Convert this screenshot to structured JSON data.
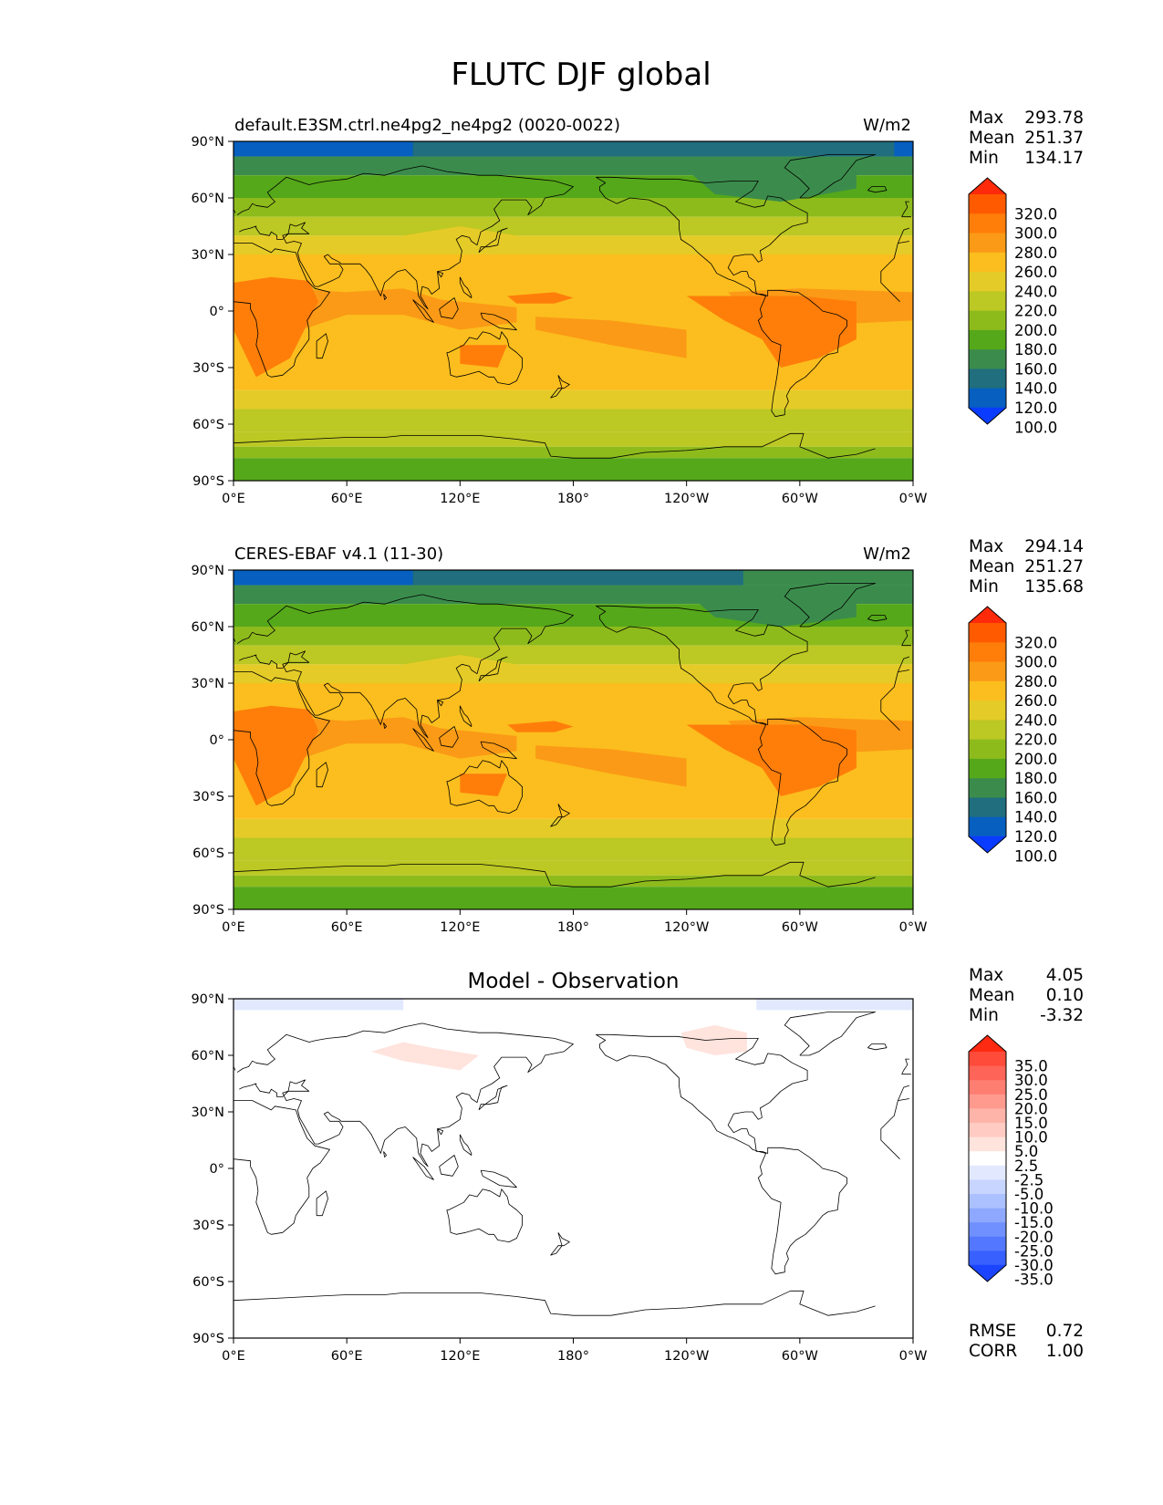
{
  "figure": {
    "title": "FLUTC DJF global",
    "x_ticks": [
      "0°E",
      "60°E",
      "120°E",
      "180°",
      "120°W",
      "60°W",
      "0°W"
    ],
    "y_ticks": [
      "90°N",
      "60°N",
      "30°N",
      "0°",
      "30°S",
      "60°S",
      "90°S"
    ]
  },
  "panels": [
    {
      "title_left": "default.E3SM.ctrl.ne4pg2_ne4pg2 (0020-0022)",
      "title_right": "W/m2",
      "title_center": "",
      "stats": [
        {
          "label": "Max",
          "value": "293.78"
        },
        {
          "label": "Mean",
          "value": "251.37"
        },
        {
          "label": "Min",
          "value": "134.17"
        }
      ],
      "colorbar": {
        "labels": [
          "320.0",
          "300.0",
          "280.0",
          "260.0",
          "240.0",
          "220.0",
          "200.0",
          "180.0",
          "160.0",
          "140.0",
          "120.0",
          "100.0"
        ],
        "colors": [
          "#ff2a0a",
          "#ff5a00",
          "#ff7e0a",
          "#fb9a16",
          "#fbbe1e",
          "#e5cb27",
          "#bcc823",
          "#8ebb1c",
          "#55a81a",
          "#3b8c4c",
          "#206e7e",
          "#075fc0",
          "#0a3cff"
        ]
      }
    },
    {
      "title_left": "CERES-EBAF v4.1 (11-30)",
      "title_right": "W/m2",
      "title_center": "",
      "stats": [
        {
          "label": "Max",
          "value": "294.14"
        },
        {
          "label": "Mean",
          "value": "251.27"
        },
        {
          "label": "Min",
          "value": "135.68"
        }
      ],
      "colorbar": {
        "labels": [
          "320.0",
          "300.0",
          "280.0",
          "260.0",
          "240.0",
          "220.0",
          "200.0",
          "180.0",
          "160.0",
          "140.0",
          "120.0",
          "100.0"
        ],
        "colors": [
          "#ff2a0a",
          "#ff5a00",
          "#ff7e0a",
          "#fb9a16",
          "#fbbe1e",
          "#e5cb27",
          "#bcc823",
          "#8ebb1c",
          "#55a81a",
          "#3b8c4c",
          "#206e7e",
          "#075fc0",
          "#0a3cff"
        ]
      }
    },
    {
      "title_left": "",
      "title_right": "",
      "title_center": "Model - Observation",
      "stats": [
        {
          "label": "Max",
          "value": "4.05"
        },
        {
          "label": "Mean",
          "value": "0.10"
        },
        {
          "label": "Min",
          "value": "-3.32"
        }
      ],
      "metrics": [
        {
          "label": "RMSE",
          "value": "0.72"
        },
        {
          "label": "CORR",
          "value": "1.00"
        }
      ],
      "colorbar": {
        "labels": [
          "35.0",
          "30.0",
          "25.0",
          "20.0",
          "15.0",
          "10.0",
          "5.0",
          "2.5",
          "-2.5",
          "-5.0",
          "-10.0",
          "-15.0",
          "-20.0",
          "-25.0",
          "-30.0",
          "-35.0"
        ],
        "colors": [
          "#ff2a12",
          "#ff4b3a",
          "#ff6458",
          "#ff7e72",
          "#ff9a8e",
          "#ffb4aa",
          "#ffcbc3",
          "#ffe3dd",
          "#ffffff",
          "#e2e9ff",
          "#c8d5ff",
          "#acc1ff",
          "#8ea8ff",
          "#7090ff",
          "#5378ff",
          "#3760ff",
          "#1a44ff"
        ]
      }
    }
  ]
}
